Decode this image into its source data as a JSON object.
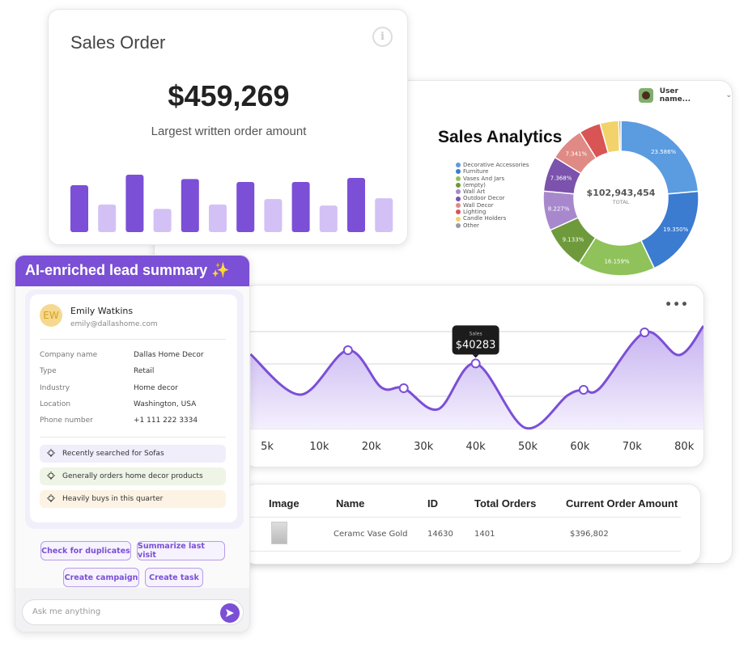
{
  "analytics": {
    "user_name": "User name...",
    "title": "Sales Analytics",
    "donut_total": "$102,943,454",
    "donut_total_label": "TOTAL"
  },
  "chart_data": [
    {
      "type": "pie",
      "title": "Sales Analytics",
      "legend_position": "left",
      "categories": [
        "Decorative Accessories",
        "Furniture",
        "Vases And Jars",
        "(empty)",
        "Wall Art",
        "Outdoor Decor",
        "Wall Decor",
        "Lighting",
        "Candle Holders",
        "Other"
      ],
      "values": [
        23.586,
        19.35,
        16.159,
        9.133,
        8.227,
        7.368,
        7.341,
        4.5,
        3.9,
        0.436
      ],
      "labels": [
        "23.586%",
        "19.350%",
        "16.159%",
        "9.133%",
        "8.227%",
        "7.368%",
        "7.341%",
        "",
        "",
        ""
      ],
      "colors": [
        "#5b9be0",
        "#3b7bd0",
        "#8fc25a",
        "#6e9a3c",
        "#a888cc",
        "#7b52ac",
        "#e08a86",
        "#d95454",
        "#f2d36b",
        "#9a9aa8"
      ],
      "center_value": "$102,943,454",
      "center_label": "TOTAL"
    },
    {
      "type": "area",
      "x_ticks": [
        "5k",
        "10k",
        "20k",
        "30k",
        "40k",
        "50k",
        "60k",
        "70k",
        "80k"
      ],
      "grid": true,
      "ylim": [
        0,
        60000
      ],
      "points": [
        [
          3.4,
          46000
        ],
        [
          8.2,
          21000
        ],
        [
          15.5,
          48500
        ],
        [
          21.9,
          25500
        ],
        [
          26.2,
          25000
        ],
        [
          32.8,
          12000
        ],
        [
          40,
          40283
        ],
        [
          49.5,
          500
        ],
        [
          57.6,
          20500
        ],
        [
          60.7,
          24000
        ],
        [
          63.8,
          25000
        ],
        [
          72.4,
          59500
        ],
        [
          79,
          45500
        ],
        [
          83.7,
          63500
        ]
      ],
      "markers": [
        15.5,
        26.2,
        40,
        60.7,
        72.4
      ],
      "tooltip": {
        "x": 40,
        "label": "Sales",
        "value": "$40283"
      },
      "color": "#7b4fd6"
    },
    {
      "type": "bar",
      "title": "Sales Order",
      "values": [
        173,
        102,
        212,
        86,
        196,
        102,
        185,
        122,
        185,
        98,
        200,
        125
      ],
      "colors": [
        "#7b4fd6",
        "#d3c1f5"
      ]
    }
  ],
  "table": {
    "headers": [
      "Image",
      "Name",
      "ID",
      "Total Orders",
      "Current Order Amount"
    ],
    "rows": [
      {
        "name": "Ceramc Vase Gold",
        "id": "14630",
        "total_orders": "1401",
        "amount": "$396,802"
      }
    ]
  },
  "sales_order": {
    "title": "Sales Order",
    "value": "$459,269",
    "subtitle": "Largest written order amount"
  },
  "lead": {
    "title": "AI-enriched lead summary ✨",
    "initials": "EW",
    "name": "Emily Watkins",
    "email": "emily@dallashome.com",
    "fields": [
      {
        "label": "Company name",
        "value": "Dallas Home Decor"
      },
      {
        "label": "Type",
        "value": "Retail"
      },
      {
        "label": "Industry",
        "value": "Home decor"
      },
      {
        "label": "Location",
        "value": "Washington, USA"
      },
      {
        "label": "Phone number",
        "value": "+1 111 222 3334"
      }
    ],
    "insights": [
      "Recently searched for Sofas",
      "Generally orders home decor products",
      "Heavily buys in this quarter"
    ],
    "insight_colors": [
      "#f0eefb",
      "#eef4e6",
      "#fdf3e4"
    ],
    "actions": [
      "Check for duplicates",
      "Summarize last visit",
      "Create campaign",
      "Create task"
    ],
    "ask_placeholder": "Ask me anything"
  }
}
